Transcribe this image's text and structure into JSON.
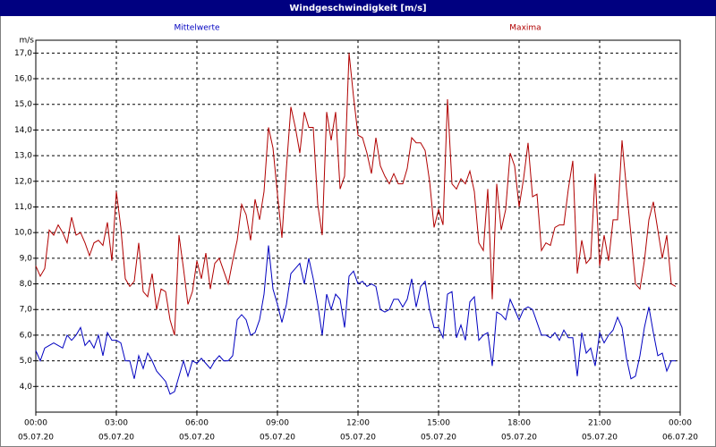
{
  "chart_data": {
    "type": "line",
    "title": "Windgeschwindigkeit [m/s]",
    "y_unit": "m/s",
    "xlim": [
      0,
      1440
    ],
    "ylim": [
      3.0,
      17.5
    ],
    "grid": true,
    "xticks": [
      {
        "value": 0,
        "label": "00:00",
        "date": "05.07.20"
      },
      {
        "value": 180,
        "label": "03:00",
        "date": "05.07.20"
      },
      {
        "value": 360,
        "label": "06:00",
        "date": "05.07.20"
      },
      {
        "value": 540,
        "label": "09:00",
        "date": "05.07.20"
      },
      {
        "value": 720,
        "label": "12:00",
        "date": "05.07.20"
      },
      {
        "value": 900,
        "label": "15:00",
        "date": "05.07.20"
      },
      {
        "value": 1080,
        "label": "18:00",
        "date": "05.07.20"
      },
      {
        "value": 1260,
        "label": "21:00",
        "date": "05.07.20"
      },
      {
        "value": 1440,
        "label": "00:00",
        "date": "06.07.20"
      }
    ],
    "yticks": [
      {
        "value": 4,
        "label": "4,0"
      },
      {
        "value": 5,
        "label": "5,0"
      },
      {
        "value": 6,
        "label": "6,0"
      },
      {
        "value": 7,
        "label": "7,0"
      },
      {
        "value": 8,
        "label": "8,0"
      },
      {
        "value": 9,
        "label": "9,0"
      },
      {
        "value": 10,
        "label": "10,0"
      },
      {
        "value": 11,
        "label": "11,0"
      },
      {
        "value": 12,
        "label": "12,0"
      },
      {
        "value": 13,
        "label": "13,0"
      },
      {
        "value": 14,
        "label": "14,0"
      },
      {
        "value": 15,
        "label": "15,0"
      },
      {
        "value": 16,
        "label": "16,0"
      },
      {
        "value": 17,
        "label": "17,0"
      }
    ],
    "x": [
      0,
      10,
      20,
      30,
      40,
      50,
      60,
      70,
      80,
      90,
      100,
      110,
      120,
      130,
      140,
      150,
      160,
      170,
      180,
      190,
      200,
      210,
      220,
      230,
      240,
      250,
      260,
      270,
      280,
      290,
      300,
      310,
      320,
      330,
      340,
      350,
      360,
      370,
      380,
      390,
      400,
      410,
      420,
      430,
      440,
      450,
      460,
      470,
      480,
      490,
      500,
      510,
      520,
      530,
      540,
      550,
      560,
      570,
      580,
      590,
      600,
      610,
      620,
      630,
      640,
      650,
      660,
      670,
      680,
      690,
      700,
      710,
      720,
      730,
      740,
      750,
      760,
      770,
      780,
      790,
      800,
      810,
      820,
      830,
      840,
      850,
      860,
      870,
      880,
      890,
      900,
      910,
      920,
      930,
      940,
      950,
      960,
      970,
      980,
      990,
      1000,
      1010,
      1020,
      1030,
      1040,
      1050,
      1060,
      1070,
      1080,
      1090,
      1100,
      1110,
      1120,
      1130,
      1140,
      1150,
      1160,
      1170,
      1180,
      1190,
      1200,
      1210,
      1220,
      1230,
      1240,
      1250,
      1260,
      1270,
      1280,
      1290,
      1300,
      1310,
      1320,
      1330,
      1340,
      1350,
      1360,
      1370,
      1380,
      1390,
      1400,
      1410,
      1420,
      1430
    ],
    "series": [
      {
        "name": "Mittelwerte",
        "color": "#0000c0",
        "values": [
          5.4,
          5.0,
          5.5,
          5.6,
          5.7,
          5.6,
          5.5,
          6.0,
          5.8,
          6.0,
          6.3,
          5.6,
          5.8,
          5.5,
          6.0,
          5.2,
          6.1,
          5.8,
          5.8,
          5.7,
          5.0,
          5.0,
          4.3,
          5.2,
          4.7,
          5.3,
          5.0,
          4.6,
          4.4,
          4.2,
          3.7,
          3.8,
          4.4,
          5.0,
          4.4,
          5.0,
          4.9,
          5.1,
          4.9,
          4.7,
          5.0,
          5.2,
          5.0,
          5.0,
          5.2,
          6.6,
          6.8,
          6.6,
          6.0,
          6.1,
          6.6,
          7.6,
          9.5,
          7.8,
          7.2,
          6.5,
          7.2,
          8.4,
          8.6,
          8.8,
          8.0,
          9.0,
          8.2,
          7.2,
          6.0,
          7.6,
          7.0,
          7.6,
          7.4,
          6.3,
          8.3,
          8.5,
          8.0,
          8.1,
          7.9,
          8.0,
          7.9,
          7.0,
          6.9,
          7.0,
          7.4,
          7.4,
          7.1,
          7.4,
          8.2,
          7.1,
          7.9,
          8.1,
          7.0,
          6.3,
          6.3,
          5.9,
          7.6,
          7.7,
          5.9,
          6.4,
          5.8,
          7.3,
          7.5,
          5.8,
          6.0,
          6.1,
          4.8,
          6.9,
          6.8,
          6.6,
          7.4,
          7.0,
          6.6,
          7.0,
          7.1,
          7.0,
          6.5,
          6.0,
          6.0,
          5.9,
          6.1,
          5.8,
          6.2,
          5.9,
          5.9,
          4.4,
          6.1,
          5.3,
          5.5,
          4.8,
          6.1,
          5.7,
          6.0,
          6.2,
          6.7,
          6.3,
          5.1,
          4.3,
          4.4,
          5.2,
          6.3,
          7.1,
          6.1,
          5.2,
          5.3,
          4.6,
          5.0,
          5.0
        ]
      },
      {
        "name": "Maxima",
        "color": "#b00000",
        "values": [
          8.7,
          8.3,
          8.6,
          10.1,
          9.9,
          10.3,
          10.0,
          9.6,
          10.6,
          9.9,
          10.0,
          9.6,
          9.1,
          9.6,
          9.7,
          9.5,
          10.4,
          8.9,
          11.6,
          10.2,
          8.2,
          7.9,
          8.1,
          9.6,
          7.7,
          7.5,
          8.4,
          7.0,
          7.8,
          7.7,
          6.6,
          6.0,
          9.9,
          8.6,
          7.2,
          7.7,
          8.9,
          8.2,
          9.2,
          7.8,
          8.8,
          9.0,
          8.5,
          8.0,
          8.9,
          9.7,
          11.1,
          10.7,
          9.7,
          11.3,
          10.5,
          11.6,
          14.1,
          13.3,
          11.5,
          9.8,
          12.5,
          14.9,
          14.1,
          13.1,
          14.7,
          14.1,
          14.1,
          11.1,
          9.9,
          14.7,
          13.6,
          14.7,
          11.7,
          12.2,
          17.0,
          15.3,
          13.8,
          13.7,
          13.1,
          12.3,
          13.7,
          12.6,
          12.2,
          11.9,
          12.3,
          11.9,
          11.9,
          12.5,
          13.7,
          13.5,
          13.5,
          13.2,
          12.0,
          10.2,
          10.9,
          10.3,
          15.2,
          11.9,
          11.7,
          12.1,
          11.9,
          12.4,
          11.6,
          9.6,
          9.3,
          11.7,
          7.4,
          11.9,
          10.1,
          10.9,
          13.1,
          12.6,
          11.0,
          12.1,
          13.5,
          11.4,
          11.5,
          9.3,
          9.6,
          9.5,
          10.2,
          10.3,
          10.3,
          11.7,
          12.8,
          8.4,
          9.7,
          8.8,
          9.0,
          12.3,
          8.7,
          9.9,
          8.9,
          10.5,
          10.5,
          13.6,
          11.7,
          9.9,
          8.0,
          7.8,
          8.9,
          10.5,
          11.2,
          10.1,
          9.0,
          9.9,
          8.0,
          7.9
        ]
      }
    ]
  }
}
